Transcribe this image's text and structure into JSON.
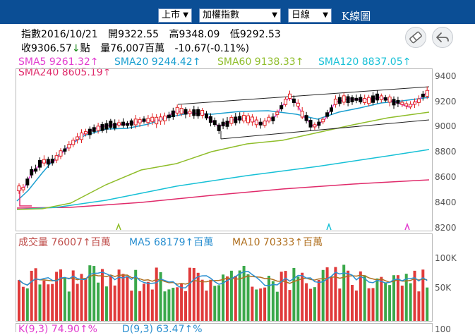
{
  "toolbar": {
    "market_select": "上市",
    "index_select": "加權指數",
    "period_select": "日線",
    "title": "K線圖",
    "dropdown_arrow": "▼"
  },
  "info": {
    "index_label": "指數2016/10/21",
    "open": "開9322.55",
    "high": "高9348.09",
    "low": "低9292.53",
    "close_prefix": "收9306.57",
    "close_arrow": "↓",
    "close_unit": "點",
    "volume": "量76,007百萬",
    "change": "-10.67(-0.11%)"
  },
  "price_legend": {
    "sma5": {
      "label": "SMA5 9261.32↑",
      "color": "#e23ccf"
    },
    "sma20": {
      "label": "SMA20 9244.42↑",
      "color": "#1a9fd0"
    },
    "sma60": {
      "label": "SMA60 9138.33↑",
      "color": "#8fbd2a"
    },
    "sma120": {
      "label": "SMA120 8837.05↑",
      "color": "#16c0d6"
    },
    "sma240": {
      "label": "SMA240 8605.19↑",
      "color": "#e02a6a"
    }
  },
  "price_axis": [
    "9400",
    "9200",
    "9000",
    "8800",
    "8600",
    "8400",
    "8200"
  ],
  "volume_legend": {
    "vol": {
      "label": "成交量 76007↑百萬",
      "color": "#c0504d"
    },
    "ma5": {
      "label": "MA5 68179↑百萬",
      "color": "#2a8fd0"
    },
    "ma10": {
      "label": "MA10 70333↑百萬",
      "color": "#b07020"
    }
  },
  "volume_axis": [
    "100K",
    "50K"
  ],
  "kd_legend": {
    "k": {
      "label": "K(9,3) 74.90↑%",
      "color": "#e23ccf"
    },
    "d": {
      "label": "D(9,3) 63.47↑%",
      "color": "#2a8fd0"
    }
  },
  "kd_axis": [
    "100"
  ],
  "colors": {
    "up": "#e02020",
    "down": "#000000",
    "vol_up": "#e03a3a",
    "vol_down": "#3aa84a",
    "toolbar": "#0b4e95"
  },
  "icons": {
    "eraser": "eraser-icon",
    "back": "back-arrow-icon"
  }
}
